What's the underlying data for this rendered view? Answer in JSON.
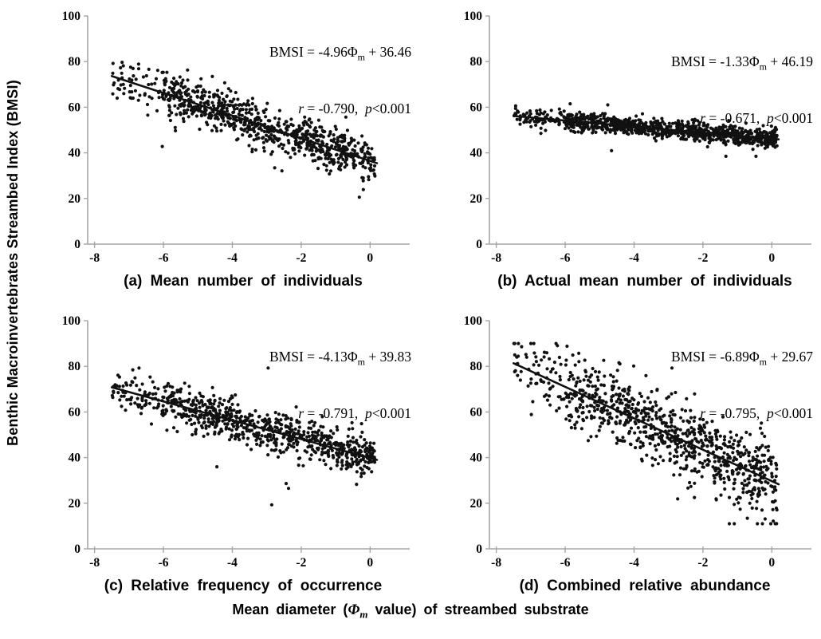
{
  "figure": {
    "y_axis_label": "Benthic Macroinvertebrates Streambed Index (BMSI)",
    "x_axis_label": {
      "prefix": "Mean diameter (",
      "phi": "Φ",
      "sub": "m",
      "suffix": " value) of streambed substrate"
    }
  },
  "chart_data": [
    {
      "panel": "a",
      "type": "scatter",
      "caption": "(a) Mean number of individuals",
      "eq": {
        "prefix": "BMSI = -4.96",
        "phi": "Φ",
        "sub": "m",
        "suffix": " + 36.46"
      },
      "stats": {
        "r_var": "r",
        "r_rest": " = -0.790,  ",
        "p_var": "p",
        "p_rest": "<0.001"
      },
      "regression": {
        "slope": -4.96,
        "intercept": 36.46,
        "r": -0.79,
        "p": "p<0.001"
      },
      "xlabel": "Mean diameter (Φm value) of streambed substrate",
      "ylabel": "Benthic Macroinvertebrates Streambed Index (BMSI)",
      "xlim": [
        -8.2,
        1.15
      ],
      "ylim": [
        0,
        100
      ],
      "xticks": [
        -8,
        -6,
        -4,
        -2,
        0
      ],
      "yticks": [
        0,
        20,
        40,
        60,
        80,
        100
      ],
      "points_spec": {
        "n": 820,
        "x_range": [
          -7.5,
          0.15
        ],
        "noise_sd": 4.8,
        "outlier_rate": 0.02,
        "outlier_mult": 2.4,
        "y_clamp": [
          12,
          88
        ],
        "seed": 101
      },
      "trendline": {
        "x1": -7.5,
        "x2": 0.2
      },
      "marker_color": "#111111",
      "axis_color": "#a6a6a6",
      "grid": false,
      "legend": "none"
    },
    {
      "panel": "b",
      "type": "scatter",
      "caption": "(b) Actual mean number of individuals",
      "eq": {
        "prefix": "BMSI = -1.33",
        "phi": "Φ",
        "sub": "m",
        "suffix": " + 46.19"
      },
      "stats": {
        "r_var": "r",
        "r_rest": " = -0.671,  ",
        "p_var": "p",
        "p_rest": "<0.001"
      },
      "regression": {
        "slope": -1.33,
        "intercept": 46.19,
        "r": -0.671,
        "p": "p<0.001"
      },
      "xlabel": "Mean diameter (Φm value) of streambed substrate",
      "ylabel": "Benthic Macroinvertebrates Streambed Index (BMSI)",
      "xlim": [
        -8.2,
        1.15
      ],
      "ylim": [
        0,
        100
      ],
      "xticks": [
        -8,
        -6,
        -4,
        -2,
        0
      ],
      "yticks": [
        0,
        20,
        40,
        60,
        80,
        100
      ],
      "points_spec": {
        "n": 980,
        "x_range": [
          -7.5,
          0.15
        ],
        "noise_sd": 2.1,
        "outlier_rate": 0.02,
        "outlier_mult": 2.6,
        "y_clamp": [
          38.5,
          61.5
        ],
        "seed": 202
      },
      "trendline": {
        "x1": -7.5,
        "x2": 0.2
      },
      "marker_color": "#111111",
      "axis_color": "#a6a6a6",
      "grid": false,
      "legend": "none"
    },
    {
      "panel": "c",
      "type": "scatter",
      "caption": "(c) Relative frequency of occurrence",
      "eq": {
        "prefix": "BMSI = -4.13",
        "phi": "Φ",
        "sub": "m",
        "suffix": " + 39.83"
      },
      "stats": {
        "r_var": "r",
        "r_rest": " = -0.791,  ",
        "p_var": "p",
        "p_rest": "<0.001"
      },
      "regression": {
        "slope": -4.13,
        "intercept": 39.83,
        "r": -0.791,
        "p": "p<0.001"
      },
      "xlabel": "Mean diameter (Φm value) of streambed substrate",
      "ylabel": "Benthic Macroinvertebrates Streambed Index (BMSI)",
      "xlim": [
        -8.2,
        1.15
      ],
      "ylim": [
        0,
        100
      ],
      "xticks": [
        -8,
        -6,
        -4,
        -2,
        0
      ],
      "yticks": [
        0,
        20,
        40,
        60,
        80,
        100
      ],
      "points_spec": {
        "n": 820,
        "x_range": [
          -7.5,
          0.15
        ],
        "noise_sd": 4.6,
        "outlier_rate": 0.02,
        "outlier_mult": 2.4,
        "y_clamp": [
          12,
          88
        ],
        "seed": 303
      },
      "trendline": {
        "x1": -7.5,
        "x2": 0.2
      },
      "marker_color": "#111111",
      "axis_color": "#a6a6a6",
      "grid": false,
      "legend": "none"
    },
    {
      "panel": "d",
      "type": "scatter",
      "caption": "(d) Combined relative abundance",
      "eq": {
        "prefix": "BMSI = -6.89",
        "phi": "Φ",
        "sub": "m",
        "suffix": " + 29.67"
      },
      "stats": {
        "r_var": "r",
        "r_rest": " = -0.795,  ",
        "p_var": "p",
        "p_rest": "<0.001"
      },
      "regression": {
        "slope": -6.89,
        "intercept": 29.67,
        "r": -0.795,
        "p": "p<0.001"
      },
      "xlabel": "Mean diameter (Φm value) of streambed substrate",
      "ylabel": "Benthic Macroinvertebrates Streambed Index (BMSI)",
      "xlim": [
        -8.2,
        1.15
      ],
      "ylim": [
        0,
        100
      ],
      "xticks": [
        -8,
        -6,
        -4,
        -2,
        0
      ],
      "yticks": [
        0,
        20,
        40,
        60,
        80,
        100
      ],
      "points_spec": {
        "n": 880,
        "x_range": [
          -7.5,
          0.15
        ],
        "noise_sd": 7.6,
        "outlier_rate": 0.02,
        "outlier_mult": 2.0,
        "y_clamp": [
          11,
          90
        ],
        "seed": 404
      },
      "trendline": {
        "x1": -7.5,
        "x2": 0.2
      },
      "marker_color": "#111111",
      "axis_color": "#a6a6a6",
      "grid": false,
      "legend": "none"
    }
  ]
}
